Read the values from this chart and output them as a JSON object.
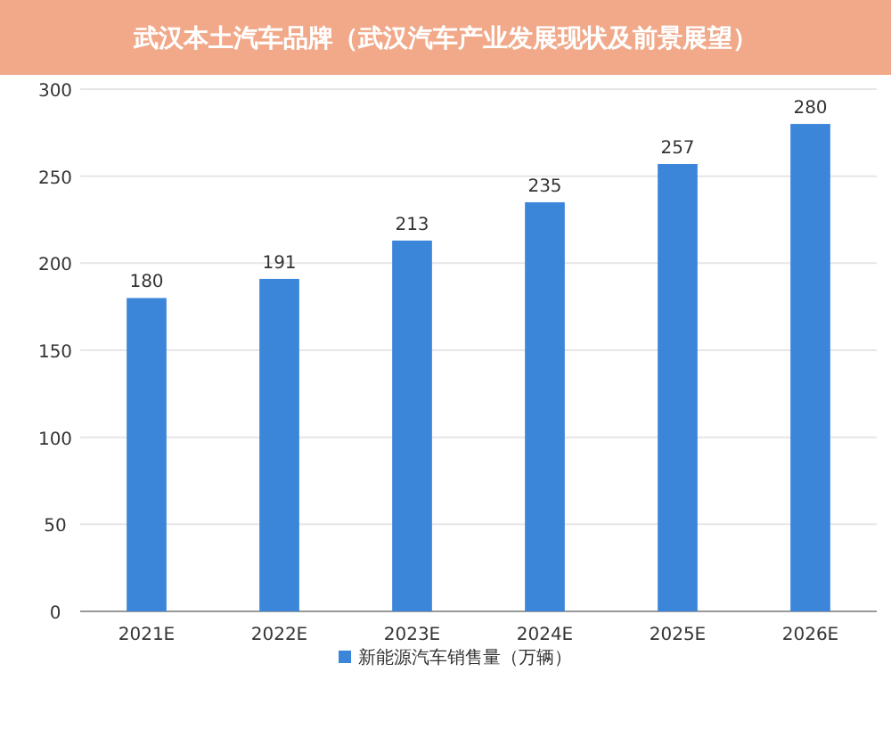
{
  "chart_data": {
    "type": "bar",
    "title": "武汉本土汽车品牌（武汉汽车产业发展现状及前景展望）",
    "categories": [
      "2021E",
      "2022E",
      "2023E",
      "2024E",
      "2025E",
      "2026E"
    ],
    "series": [
      {
        "name": "新能源汽车销售量（万辆）",
        "color": "#3c86da",
        "values": [
          180,
          191,
          213,
          235,
          257,
          280
        ]
      }
    ],
    "ylim": [
      0,
      300
    ],
    "yticks": [
      0,
      50,
      100,
      150,
      200,
      250,
      300
    ],
    "grid": "y",
    "legend": "bottom",
    "data_labels": true
  }
}
